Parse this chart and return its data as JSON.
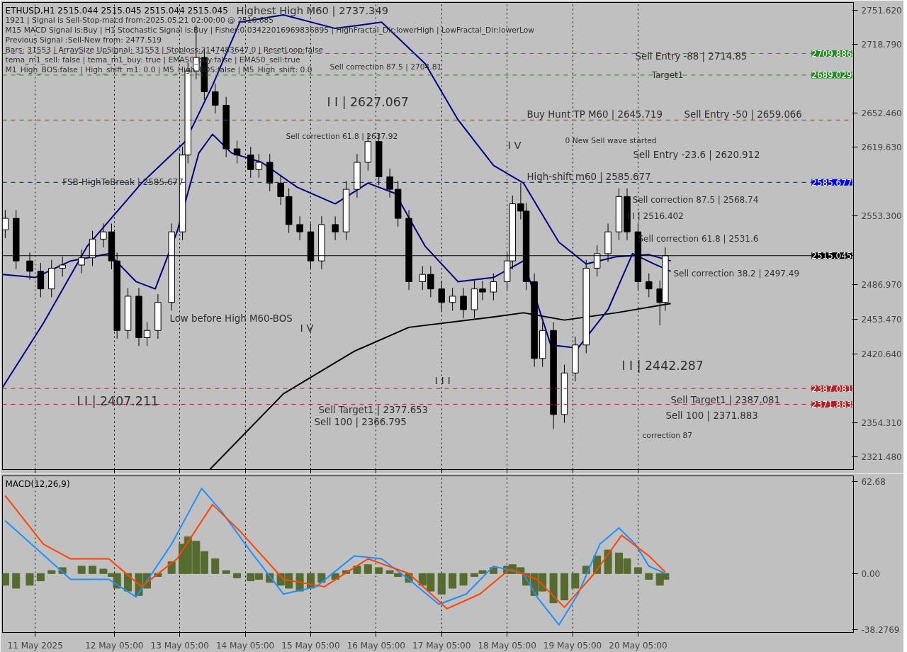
{
  "chart_data": [
    {
      "type": "candlestick",
      "title": "ETHUSD,H1  2515.044 2515.045 2515.044 2515.045",
      "x": [
        "2025-05-10T13:00",
        "2025-05-10T17:00",
        "2025-05-10T22:00",
        "2025-05-11T02:00",
        "2025-05-11T06:00",
        "2025-05-11T10:00",
        "2025-05-11T17:00",
        "2025-05-11T21:00",
        "2025-05-12T01:00",
        "2025-05-12T04:00",
        "2025-05-12T06:00",
        "2025-05-12T10:00",
        "2025-05-12T14:00",
        "2025-05-12T17:00",
        "2025-05-12T21:00",
        "2025-05-13T02:00",
        "2025-05-13T06:00",
        "2025-05-13T08:00",
        "2025-05-13T11:00",
        "2025-05-13T14:00",
        "2025-05-13T18:00",
        "2025-05-13T22:00",
        "2025-05-14T02:00",
        "2025-05-14T07:00",
        "2025-05-14T10:00",
        "2025-05-14T14:00",
        "2025-05-14T18:00",
        "2025-05-14T21:00",
        "2025-05-15T01:00",
        "2025-05-15T05:00",
        "2025-05-15T09:00",
        "2025-05-15T14:00",
        "2025-05-15T18:00",
        "2025-05-15T22:00",
        "2025-05-16T02:00",
        "2025-05-16T06:00",
        "2025-05-16T10:00",
        "2025-05-16T13:00",
        "2025-05-16T17:00",
        "2025-05-16T22:00",
        "2025-05-17T01:00",
        "2025-05-17T05:00",
        "2025-05-17T09:00",
        "2025-05-17T13:00",
        "2025-05-17T17:00",
        "2025-05-17T20:00",
        "2025-05-18T00:00",
        "2025-05-18T05:00",
        "2025-05-18T07:00",
        "2025-05-18T10:00",
        "2025-05-18T12:00",
        "2025-05-18T15:00",
        "2025-05-18T18:00",
        "2025-05-18T22:00",
        "2025-05-19T02:00",
        "2025-05-19T06:00",
        "2025-05-19T10:00",
        "2025-05-19T14:00",
        "2025-05-19T18:00",
        "2025-05-19T22:00",
        "2025-05-20T01:00",
        "2025-05-20T05:00",
        "2025-05-20T09:00",
        "2025-05-20T13:00",
        "2025-05-20T15:00"
      ],
      "ohlc": [
        [
          2540,
          2559,
          2532,
          2551
        ],
        [
          2551,
          2559,
          2502,
          2510
        ],
        [
          2510,
          2518,
          2492,
          2500
        ],
        [
          2500,
          2508,
          2475,
          2483
        ],
        [
          2483,
          2511,
          2475,
          2503
        ],
        [
          2503,
          2514,
          2495,
          2506
        ],
        [
          2506,
          2521,
          2498,
          2513
        ],
        [
          2513,
          2539,
          2505,
          2531
        ],
        [
          2531,
          2546,
          2523,
          2538
        ],
        [
          2538,
          2546,
          2502,
          2510
        ],
        [
          2510,
          2518,
          2435,
          2443
        ],
        [
          2443,
          2484,
          2435,
          2476
        ],
        [
          2476,
          2484,
          2428,
          2436
        ],
        [
          2436,
          2451,
          2428,
          2443
        ],
        [
          2443,
          2478,
          2435,
          2470
        ],
        [
          2470,
          2546,
          2462,
          2538
        ],
        [
          2538,
          2620,
          2530,
          2612
        ],
        [
          2612,
          2701,
          2604,
          2693
        ],
        [
          2693,
          2737,
          2685,
          2706
        ],
        [
          2706,
          2714,
          2665,
          2673
        ],
        [
          2673,
          2681,
          2652,
          2660
        ],
        [
          2660,
          2668,
          2610,
          2618
        ],
        [
          2618,
          2626,
          2604,
          2612
        ],
        [
          2612,
          2620,
          2590,
          2598
        ],
        [
          2598,
          2613,
          2590,
          2605
        ],
        [
          2605,
          2613,
          2577,
          2585
        ],
        [
          2585,
          2593,
          2564,
          2572
        ],
        [
          2572,
          2580,
          2537,
          2545
        ],
        [
          2545,
          2553,
          2530,
          2538
        ],
        [
          2538,
          2546,
          2502,
          2510
        ],
        [
          2510,
          2553,
          2502,
          2545
        ],
        [
          2545,
          2553,
          2530,
          2538
        ],
        [
          2538,
          2587,
          2530,
          2579
        ],
        [
          2579,
          2613,
          2571,
          2605
        ],
        [
          2605,
          2633,
          2597,
          2625
        ],
        [
          2625,
          2633,
          2583,
          2591
        ],
        [
          2591,
          2599,
          2571,
          2579
        ],
        [
          2579,
          2587,
          2543,
          2551
        ],
        [
          2551,
          2559,
          2482,
          2490
        ],
        [
          2490,
          2505,
          2482,
          2497
        ],
        [
          2497,
          2505,
          2475,
          2483
        ],
        [
          2483,
          2491,
          2462,
          2470
        ],
        [
          2470,
          2484,
          2462,
          2476
        ],
        [
          2476,
          2484,
          2455,
          2463
        ],
        [
          2463,
          2491,
          2455,
          2483
        ],
        [
          2483,
          2491,
          2472,
          2480
        ],
        [
          2480,
          2498,
          2472,
          2490
        ],
        [
          2490,
          2518,
          2482,
          2510
        ],
        [
          2510,
          2573,
          2502,
          2565
        ],
        [
          2565,
          2585,
          2550,
          2558
        ],
        [
          2558,
          2566,
          2482,
          2490
        ],
        [
          2490,
          2498,
          2408,
          2416
        ],
        [
          2416,
          2451,
          2408,
          2443
        ],
        [
          2443,
          2451,
          2348,
          2362
        ],
        [
          2362,
          2410,
          2354,
          2402
        ],
        [
          2402,
          2437,
          2394,
          2429
        ],
        [
          2429,
          2511,
          2421,
          2503
        ],
        [
          2503,
          2525,
          2495,
          2517
        ],
        [
          2517,
          2546,
          2509,
          2538
        ],
        [
          2538,
          2580,
          2530,
          2572
        ],
        [
          2572,
          2580,
          2530,
          2538
        ],
        [
          2538,
          2546,
          2482,
          2490
        ],
        [
          2490,
          2498,
          2475,
          2483
        ],
        [
          2483,
          2491,
          2448,
          2470
        ],
        [
          2470,
          2523,
          2462,
          2515
        ]
      ],
      "color": "#000000",
      "series": [
        {
          "type": "line",
          "color": "#000000",
          "x": [
            "2025-05-13T16:00",
            "2025-05-14T19:00",
            "2025-05-15T21:00",
            "2025-05-16T17:00",
            "2025-05-18T00:00",
            "2025-05-18T11:00",
            "2025-05-19T02:00",
            "2025-05-19T21:00",
            "2025-05-20T17:00"
          ],
          "values": [
            2309,
            2382,
            2423,
            2446,
            2456,
            2460,
            2453,
            2460,
            2469
          ]
        },
        {
          "type": "line",
          "color": "#000080",
          "x": [
            "2025-05-10T12:00",
            "2025-05-11T00:00",
            "2025-05-11T13:00",
            "2025-05-12T03:00",
            "2025-05-12T13:00",
            "2025-05-12T20:00",
            "2025-05-13T04:00",
            "2025-05-13T12:00",
            "2025-05-13T17:00",
            "2025-05-14T00:00",
            "2025-05-14T11:00",
            "2025-05-15T00:00",
            "2025-05-15T14:00",
            "2025-05-16T02:00",
            "2025-05-16T12:00",
            "2025-05-16T23:00",
            "2025-05-17T11:00",
            "2025-05-18T00:00",
            "2025-05-18T11:00",
            "2025-05-18T21:00",
            "2025-05-19T07:00",
            "2025-05-19T18:00",
            "2025-05-20T03:00",
            "2025-05-20T11:00",
            "2025-05-20T17:00"
          ],
          "values": [
            2497,
            2494,
            2510,
            2517,
            2490,
            2483,
            2538,
            2614,
            2632,
            2614,
            2605,
            2581,
            2565,
            2585,
            2575,
            2524,
            2490,
            2494,
            2510,
            2429,
            2426,
            2463,
            2517,
            2507,
            2500
          ]
        },
        {
          "type": "line",
          "color": "#00008b",
          "x": [
            "2025-05-10T12:00",
            "2025-05-11T03:00",
            "2025-05-11T19:00",
            "2025-05-12T15:00",
            "2025-05-13T07:00",
            "2025-05-13T17:00",
            "2025-05-14T03:00",
            "2025-05-14T19:00",
            "2025-05-15T14:00",
            "2025-05-16T07:00",
            "2025-05-16T23:00",
            "2025-05-17T11:00",
            "2025-05-18T00:00",
            "2025-05-18T11:00",
            "2025-05-19T00:00",
            "2025-05-19T10:00",
            "2025-05-19T21:00",
            "2025-05-20T09:00",
            "2025-05-20T17:00"
          ],
          "values": [
            2388,
            2450,
            2524,
            2585,
            2625,
            2679,
            2740,
            2747,
            2734,
            2740,
            2700,
            2646,
            2602,
            2585,
            2528,
            2507,
            2514,
            2516,
            2510
          ]
        }
      ],
      "ref_lines": [
        {
          "axis": "y",
          "value": 2709.886,
          "label": "2709.886",
          "color": "#228b22",
          "line_style": "dashed"
        },
        {
          "axis": "y",
          "value": 2689.029,
          "label": "2689.029",
          "color": "#228b22",
          "line_style": "dashed"
        },
        {
          "axis": "y",
          "value": 2645.719,
          "label": null,
          "color": "#ff0000",
          "line_style": "dashed"
        },
        {
          "axis": "y",
          "value": 2585.677,
          "label": "2585.677",
          "color": "#0000ff",
          "line_style": "dashed"
        },
        {
          "axis": "y",
          "value": 2515.045,
          "label": "2515.045",
          "color": "#000000",
          "line_style": "solid"
        },
        {
          "axis": "y",
          "value": 2387.081,
          "label": "2387.081",
          "color": "#b22222",
          "line_style": "dashed"
        },
        {
          "axis": "y",
          "value": 2371.883,
          "label": "2371.883",
          "color": "#b22222",
          "line_style": "dashed"
        }
      ],
      "annotations": [
        "1921 | Signal is Sell-Stop-macd from:2025.05.21 02:00:00 @ 2516.685",
        "M15 MACD Signal is:Buy | H1 Stochastic Signal is:Buy | Fisher:0.03422016969836895 | HighFractal_Dir:lowerHigh | LowFractal_Dir:lowerLow",
        "Previous Signal :Sell-New from: 2477.519",
        "Bars: 31553 | ArraySize UpSignal: 31553 | Stoploss:2147483647.0 | ResetLoop:false",
        "tema_m1_sell: false | tema_m1_buy: true | EMA50_buy:false | EMA50_sell:true",
        "M1_High_BOS:false | High_shift_m1: 0.0 | M5_High_BOS:false | M5_High_shift: 0.0",
        "Highest High   M60 | 2737.349",
        "Sell correction 87.5 | 2704.81",
        "I I | 2627.067",
        "Sell correction 61.8 | 2637.92",
        {
          "text": "FSB-HighToBreak | 2585.677",
          "x": "2025-05-11T10:00",
          "y": 2585.677
        },
        "Low before High   M60-BOS",
        "I V",
        "I I | 2407.211",
        "I I I",
        "Sell Target1 | 2377.653",
        "Sell 100 | 2366.795",
        "Buy Hunt TP M60 | 2645.719",
        "Sell Entry -50 | 2659.066",
        "Sell Entry -88 | 2714.85",
        {
          "text": "Target1",
          "x": "2025-05-20T10:00",
          "y": 2689.029
        },
        "0 New Sell wave started",
        "I V",
        "Sell Entry -23.6 | 2620.912",
        "High-shift m60 | 2585.677",
        {
          "text": "I I | 2516.402",
          "x": "2025-05-20T01:00",
          "y": 2553
        },
        {
          "text": "Sell correction 87.5 | 2568.74",
          "x": "2025-05-20T03:00",
          "y": 2568.74
        },
        {
          "text": "Sell correction 61.8 | 2531.6",
          "x": "2025-05-20T05:00",
          "y": 2531.6
        },
        {
          "text": "Sell correction 38.2 | 2497.49",
          "x": "2025-05-20T18:00",
          "y": 2497.49
        },
        "I I | 2442.287",
        "Sell Target1 | 2387.081",
        "Sell 100 | 2371.883",
        "correction 87"
      ],
      "xlim": [
        "2025-05-10T12:00",
        "2025-05-23T12:00"
      ],
      "ylim": [
        2309,
        2759
      ],
      "xticks": [
        "2025-05-11T00:00",
        "2025-05-12T05:00",
        "2025-05-13T05:00",
        "2025-05-14T05:00",
        "2025-05-15T05:00",
        "2025-05-16T05:00",
        "2025-05-17T05:00",
        "2025-05-18T05:00",
        "2025-05-19T05:00",
        "2025-05-20T05:00"
      ],
      "yticks": [
        {
          "value": 2751.62,
          "label": "2751.620"
        },
        {
          "value": 2718.79,
          "label": "2718.790"
        },
        {
          "value": 2652.46,
          "label": "2652.460"
        },
        {
          "value": 2619.63,
          "label": "2619.630"
        },
        {
          "value": 2553.3,
          "label": "2553.300"
        },
        {
          "value": 2486.97,
          "label": "2486.970"
        },
        {
          "value": 2453.47,
          "label": "2453.470"
        },
        {
          "value": 2420.64,
          "label": "2420.640"
        },
        {
          "value": 2354.31,
          "label": "2354.310"
        },
        {
          "value": 2321.48,
          "label": "2321.480"
        }
      ],
      "grid": "x",
      "tick_labels": "y"
    },
    {
      "type": "bar",
      "title": "MACD(12,26,9)",
      "x": [
        "2025-05-10T13:00",
        "2025-05-10T17:00",
        "2025-05-10T22:00",
        "2025-05-11T02:00",
        "2025-05-11T06:00",
        "2025-05-11T10:00",
        "2025-05-11T17:00",
        "2025-05-11T21:00",
        "2025-05-12T01:00",
        "2025-05-12T04:00",
        "2025-05-12T06:00",
        "2025-05-12T10:00",
        "2025-05-12T14:00",
        "2025-05-12T17:00",
        "2025-05-12T21:00",
        "2025-05-13T02:00",
        "2025-05-13T06:00",
        "2025-05-13T08:00",
        "2025-05-13T11:00",
        "2025-05-13T14:00",
        "2025-05-13T18:00",
        "2025-05-13T22:00",
        "2025-05-14T02:00",
        "2025-05-14T07:00",
        "2025-05-14T10:00",
        "2025-05-14T14:00",
        "2025-05-14T18:00",
        "2025-05-14T21:00",
        "2025-05-15T01:00",
        "2025-05-15T05:00",
        "2025-05-15T09:00",
        "2025-05-15T14:00",
        "2025-05-15T18:00",
        "2025-05-15T22:00",
        "2025-05-16T02:00",
        "2025-05-16T06:00",
        "2025-05-16T10:00",
        "2025-05-16T13:00",
        "2025-05-16T17:00",
        "2025-05-16T22:00",
        "2025-05-17T01:00",
        "2025-05-17T05:00",
        "2025-05-17T09:00",
        "2025-05-17T13:00",
        "2025-05-17T17:00",
        "2025-05-17T20:00",
        "2025-05-18T00:00",
        "2025-05-18T05:00",
        "2025-05-18T07:00",
        "2025-05-18T10:00",
        "2025-05-18T12:00",
        "2025-05-18T15:00",
        "2025-05-18T18:00",
        "2025-05-18T22:00",
        "2025-05-19T02:00",
        "2025-05-19T06:00",
        "2025-05-19T10:00",
        "2025-05-19T14:00",
        "2025-05-19T18:00",
        "2025-05-19T22:00",
        "2025-05-20T01:00",
        "2025-05-20T05:00",
        "2025-05-20T09:00",
        "2025-05-20T13:00",
        "2025-05-20T15:00"
      ],
      "series": [
        {
          "type": "bar",
          "color": "#556b2f",
          "values": [
            -8,
            -10,
            -8,
            -5,
            2,
            4,
            5,
            5,
            3,
            -2,
            -10,
            -12,
            -15,
            -10,
            -2,
            8,
            20,
            25,
            22,
            15,
            10,
            2,
            -3,
            -5,
            -4,
            -6,
            -8,
            -10,
            -12,
            -10,
            -6,
            -4,
            2,
            5,
            6,
            4,
            2,
            -2,
            -6,
            -8,
            -12,
            -14,
            -10,
            -8,
            -2,
            2,
            4,
            5,
            6,
            4,
            -8,
            -15,
            -12,
            -20,
            -18,
            -10,
            5,
            12,
            16,
            14,
            10,
            4,
            -4,
            -8,
            -4
          ]
        },
        {
          "type": "line",
          "color": "#1e90ff",
          "x": [
            "2025-05-10T13:00",
            "2025-05-11T13:00",
            "2025-05-12T03:00",
            "2025-05-12T13:00",
            "2025-05-13T02:00",
            "2025-05-13T13:00",
            "2025-05-13T20:00",
            "2025-05-14T07:00",
            "2025-05-14T19:00",
            "2025-05-15T07:00",
            "2025-05-15T21:00",
            "2025-05-16T07:00",
            "2025-05-16T17:00",
            "2025-05-17T04:00",
            "2025-05-17T14:00",
            "2025-05-18T00:00",
            "2025-05-18T11:00",
            "2025-05-18T16:00",
            "2025-05-19T00:00",
            "2025-05-19T07:00",
            "2025-05-19T15:00",
            "2025-05-19T22:00",
            "2025-05-20T04:00",
            "2025-05-20T09:00",
            "2025-05-20T15:00"
          ],
          "values": [
            36,
            -4,
            -4,
            -16,
            20,
            58,
            43,
            15,
            -14,
            -9,
            12,
            10,
            -4,
            -21,
            -14,
            5,
            0,
            -16,
            -35,
            -14,
            20,
            31,
            20,
            5,
            0
          ]
        },
        {
          "type": "line",
          "color": "#ff4500",
          "x": [
            "2025-05-10T13:00",
            "2025-05-11T03:00",
            "2025-05-11T13:00",
            "2025-05-12T03:00",
            "2025-05-12T15:00",
            "2025-05-13T04:00",
            "2025-05-13T17:00",
            "2025-05-14T03:00",
            "2025-05-14T19:00",
            "2025-05-15T10:00",
            "2025-05-16T02:00",
            "2025-05-16T17:00",
            "2025-05-17T07:00",
            "2025-05-17T19:00",
            "2025-05-18T06:00",
            "2025-05-18T16:00",
            "2025-05-19T02:00",
            "2025-05-19T13:00",
            "2025-05-19T23:00",
            "2025-05-20T09:00",
            "2025-05-20T15:00"
          ],
          "values": [
            53,
            20,
            10,
            10,
            -9,
            10,
            47,
            29,
            -4,
            -9,
            10,
            0,
            -24,
            -14,
            3,
            -4,
            -23,
            0,
            26,
            12,
            1
          ]
        }
      ],
      "xlim": [
        "2025-05-10T12:00",
        "2025-05-23T12:00"
      ],
      "ylim": [
        -40.2,
        66.5
      ],
      "xticks": [
        {
          "value": "2025-05-11T00:00",
          "label": "11 May 2025"
        },
        {
          "value": "2025-05-12T05:00",
          "label": "12 May 05:00"
        },
        {
          "value": "2025-05-13T05:00",
          "label": "13 May 05:00"
        },
        {
          "value": "2025-05-14T05:00",
          "label": "14 May 05:00"
        },
        {
          "value": "2025-05-15T05:00",
          "label": "15 May 05:00"
        },
        {
          "value": "2025-05-16T05:00",
          "label": "16 May 05:00"
        },
        {
          "value": "2025-05-17T05:00",
          "label": "17 May 05:00"
        },
        {
          "value": "2025-05-18T05:00",
          "label": "18 May 05:00"
        },
        {
          "value": "2025-05-19T05:00",
          "label": "19 May 05:00"
        },
        {
          "value": "2025-05-20T05:00",
          "label": "20 May 05:00"
        }
      ],
      "yticks": [
        62.68,
        {
          "value": 0,
          "label": "0.00"
        },
        {
          "value": -38.2769,
          "label": "-38.2769"
        }
      ],
      "grid": "x"
    }
  ]
}
